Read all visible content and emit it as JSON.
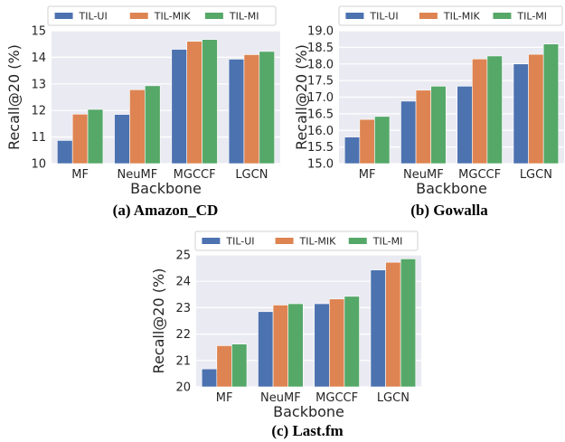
{
  "colors": {
    "TIL-UI": "#4c72b0",
    "TIL-MIK": "#dd8452",
    "TIL-MI": "#55a868",
    "plot_bg": "#eaeaf2",
    "grid": "#ffffff"
  },
  "chart_data": [
    {
      "type": "bar",
      "caption": "(a) Amazon_CD",
      "xlabel": "Backbone",
      "ylabel": "Recall@20 (%)",
      "categories": [
        "MF",
        "NeuMF",
        "MGCCF",
        "LGCN"
      ],
      "ylim": [
        10,
        15
      ],
      "yticks": [
        "10",
        "11",
        "12",
        "13",
        "14",
        "15"
      ],
      "legend_placement": "top",
      "grid": true,
      "series": [
        {
          "name": "TIL-UI",
          "values": [
            10.87,
            11.85,
            14.3,
            13.93
          ]
        },
        {
          "name": "TIL-MIK",
          "values": [
            11.86,
            12.78,
            14.6,
            14.1
          ]
        },
        {
          "name": "TIL-MI",
          "values": [
            12.04,
            12.93,
            14.67,
            14.22
          ]
        }
      ]
    },
    {
      "type": "bar",
      "caption": "(b) Gowalla",
      "xlabel": "Backbone",
      "ylabel": "Recall@20 (%)",
      "categories": [
        "MF",
        "NeuMF",
        "MGCCF",
        "LGCN"
      ],
      "ylim": [
        15,
        19
      ],
      "yticks": [
        "15.0",
        "15.5",
        "16.0",
        "16.5",
        "17.0",
        "17.5",
        "18.0",
        "18.5",
        "19.0"
      ],
      "legend_placement": "top",
      "grid": true,
      "series": [
        {
          "name": "TIL-UI",
          "values": [
            15.8,
            16.88,
            17.33,
            18.0
          ]
        },
        {
          "name": "TIL-MIK",
          "values": [
            16.33,
            17.21,
            18.15,
            18.29
          ]
        },
        {
          "name": "TIL-MI",
          "values": [
            16.42,
            17.33,
            18.24,
            18.6
          ]
        }
      ]
    },
    {
      "type": "bar",
      "caption": "(c) Last.fm",
      "xlabel": "Backbone",
      "ylabel": "Recall@20 (%)",
      "categories": [
        "MF",
        "NeuMF",
        "MGCCF",
        "LGCN"
      ],
      "ylim": [
        20,
        25
      ],
      "yticks": [
        "20",
        "21",
        "22",
        "23",
        "24",
        "25"
      ],
      "legend_placement": "top",
      "grid": true,
      "series": [
        {
          "name": "TIL-UI",
          "values": [
            20.68,
            22.85,
            23.15,
            24.43
          ]
        },
        {
          "name": "TIL-MIK",
          "values": [
            21.56,
            23.1,
            23.33,
            24.72
          ]
        },
        {
          "name": "TIL-MI",
          "values": [
            21.62,
            23.15,
            23.43,
            24.85
          ]
        }
      ]
    }
  ]
}
